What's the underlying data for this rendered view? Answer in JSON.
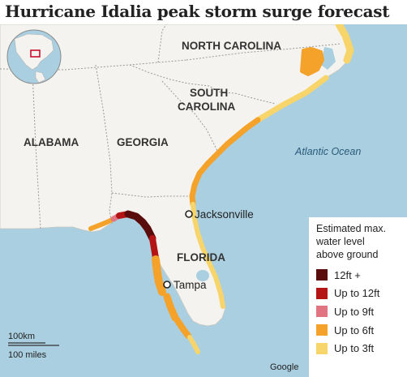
{
  "title": "Hurricane Idalia peak storm surge forecast",
  "map": {
    "states": [
      {
        "name": "NORTH CAROLINA",
        "lines": [
          "NORTH CAROLINA"
        ]
      },
      {
        "name": "SOUTH CAROLINA",
        "lines": [
          "SOUTH",
          "CAROLINA"
        ]
      },
      {
        "name": "ALABAMA",
        "lines": [
          "ALABAMA"
        ]
      },
      {
        "name": "GEORGIA",
        "lines": [
          "GEORGIA"
        ]
      },
      {
        "name": "FLORIDA",
        "lines": [
          "FLORIDA"
        ]
      }
    ],
    "ocean": "Atlantic Ocean",
    "cities": [
      {
        "name": "Jacksonville"
      },
      {
        "name": "Tampa"
      }
    ],
    "scale": {
      "km": "100km",
      "miles": "100 miles"
    },
    "attribution": "Google"
  },
  "legend": {
    "title": "Estimated max.\nwater level\nabove ground",
    "items": [
      {
        "label": "12ft +",
        "color": "#5a0b0b"
      },
      {
        "label": "Up to 12ft",
        "color": "#b41414"
      },
      {
        "label": "Up to 9ft",
        "color": "#e07480"
      },
      {
        "label": "Up to 6ft",
        "color": "#f5a22b"
      },
      {
        "label": "Up to 3ft",
        "color": "#f7d56b"
      }
    ]
  },
  "colors": {
    "ocean": "#a9cfe0",
    "land": "#f4f3ef",
    "border": "#9a9a9a",
    "inset_box": "#c8102e"
  }
}
